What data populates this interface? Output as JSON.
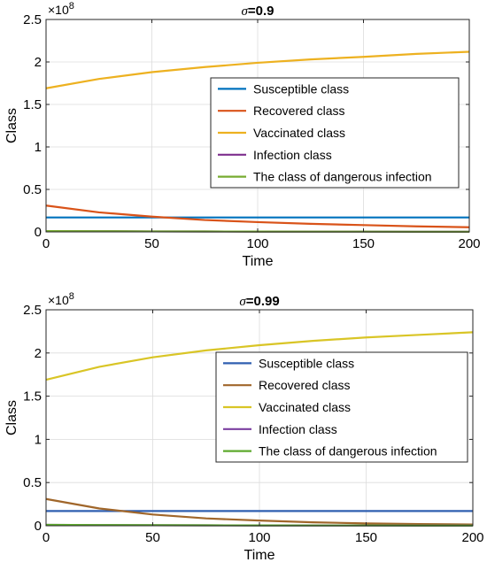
{
  "chart_data": [
    {
      "type": "line",
      "title_prefix": "σ",
      "title_value": "=0.9",
      "xlabel": "Time",
      "ylabel": "Class",
      "exponent_base": "×10",
      "exponent_power": "8",
      "xlim": [
        0,
        200
      ],
      "ylim": [
        0,
        2.5
      ],
      "xticks": [
        0,
        50,
        100,
        150,
        200
      ],
      "yticks": [
        0,
        0.5,
        1,
        1.5,
        2,
        2.5
      ],
      "xtick_labels": [
        "0",
        "50",
        "100",
        "150",
        "200"
      ],
      "ytick_labels": [
        "0",
        "0.5",
        "1",
        "1.5",
        "2",
        "2.5"
      ],
      "grid": true,
      "legend_position": "center-right",
      "series": [
        {
          "name": "Susceptible class",
          "color": "#0072BD",
          "x": [
            0,
            25,
            50,
            75,
            100,
            125,
            150,
            175,
            200
          ],
          "y": [
            0.17,
            0.17,
            0.17,
            0.17,
            0.17,
            0.17,
            0.17,
            0.17,
            0.17
          ]
        },
        {
          "name": "Recovered class",
          "color": "#D95319",
          "x": [
            0,
            25,
            50,
            75,
            100,
            125,
            150,
            175,
            200
          ],
          "y": [
            0.31,
            0.23,
            0.18,
            0.14,
            0.115,
            0.095,
            0.08,
            0.065,
            0.055
          ]
        },
        {
          "name": "Vaccinated class",
          "color": "#EDB120",
          "x": [
            0,
            25,
            50,
            75,
            100,
            125,
            150,
            175,
            200
          ],
          "y": [
            1.69,
            1.8,
            1.88,
            1.94,
            1.99,
            2.03,
            2.06,
            2.095,
            2.12
          ]
        },
        {
          "name": "Infection class",
          "color": "#7E2F8E",
          "x": [
            0,
            25,
            50,
            75,
            100,
            125,
            150,
            175,
            200
          ],
          "y": [
            0.01,
            0.008,
            0.006,
            0.005,
            0.004,
            0.003,
            0.003,
            0.002,
            0.002
          ]
        },
        {
          "name": "The class of dangerous infection",
          "color": "#77AC30",
          "x": [
            0,
            25,
            50,
            75,
            100,
            125,
            150,
            175,
            200
          ],
          "y": [
            0.01,
            0.008,
            0.006,
            0.005,
            0.004,
            0.003,
            0.003,
            0.002,
            0.002
          ]
        }
      ]
    },
    {
      "type": "line",
      "title_prefix": "σ",
      "title_value": "=0.99",
      "xlabel": "Time",
      "ylabel": "Class",
      "exponent_base": "×10",
      "exponent_power": "8",
      "xlim": [
        0,
        200
      ],
      "ylim": [
        0,
        2.5
      ],
      "xticks": [
        0,
        50,
        100,
        150,
        200
      ],
      "yticks": [
        0,
        0.5,
        1,
        1.5,
        2,
        2.5
      ],
      "xtick_labels": [
        "0",
        "50",
        "100",
        "150",
        "200"
      ],
      "ytick_labels": [
        "0",
        "0.5",
        "1",
        "1.5",
        "2",
        "2.5"
      ],
      "grid": true,
      "legend_position": "center-right",
      "series": [
        {
          "name": "Susceptible class",
          "color": "#2F5FB0",
          "x": [
            0,
            25,
            50,
            75,
            100,
            125,
            150,
            175,
            200
          ],
          "y": [
            0.17,
            0.17,
            0.17,
            0.17,
            0.17,
            0.17,
            0.17,
            0.17,
            0.17
          ]
        },
        {
          "name": "Recovered class",
          "color": "#A0662A",
          "x": [
            0,
            25,
            50,
            75,
            100,
            125,
            150,
            175,
            200
          ],
          "y": [
            0.31,
            0.2,
            0.13,
            0.085,
            0.06,
            0.04,
            0.027,
            0.02,
            0.015
          ]
        },
        {
          "name": "Vaccinated class",
          "color": "#D9C526",
          "x": [
            0,
            25,
            50,
            75,
            100,
            125,
            150,
            175,
            200
          ],
          "y": [
            1.69,
            1.84,
            1.95,
            2.03,
            2.09,
            2.14,
            2.18,
            2.21,
            2.24
          ]
        },
        {
          "name": "Infection class",
          "color": "#7B3FA0",
          "x": [
            0,
            25,
            50,
            75,
            100,
            125,
            150,
            175,
            200
          ],
          "y": [
            0.01,
            0.008,
            0.006,
            0.005,
            0.004,
            0.003,
            0.003,
            0.002,
            0.002
          ]
        },
        {
          "name": "The class of dangerous infection",
          "color": "#5EAA2E",
          "x": [
            0,
            25,
            50,
            75,
            100,
            125,
            150,
            175,
            200
          ],
          "y": [
            0.01,
            0.008,
            0.006,
            0.005,
            0.004,
            0.003,
            0.003,
            0.002,
            0.002
          ]
        }
      ]
    }
  ]
}
